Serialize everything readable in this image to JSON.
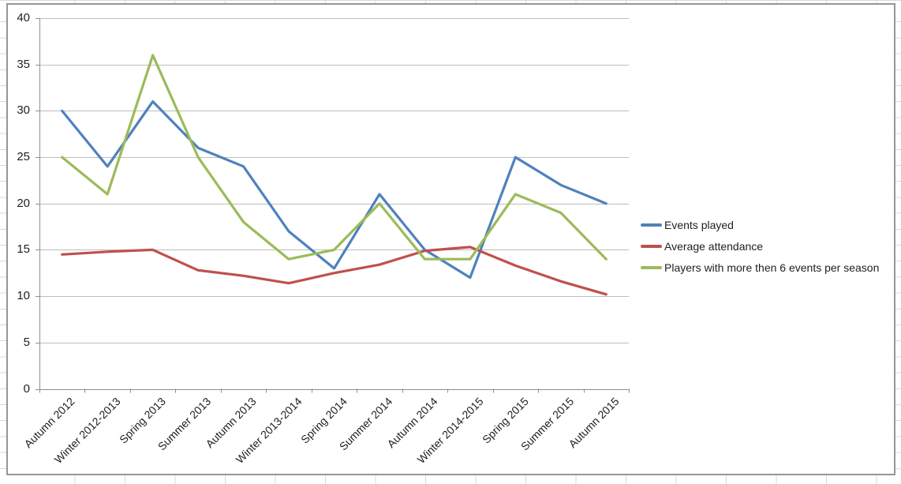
{
  "chart_data": {
    "type": "line",
    "title": "",
    "xlabel": "",
    "ylabel": "",
    "categories": [
      "Autumn 2012",
      "Winter 2012-2013",
      "Spring 2013",
      "Summer 2013",
      "Autumn 2013",
      "Winter 2013-2014",
      "Spring 2014",
      "Summer 2014",
      "Autumn 2014",
      "Winter 2014-2015",
      "Spring 2015",
      "Summer 2015",
      "Autumn 2015"
    ],
    "series": [
      {
        "name": "Events played",
        "color": "#4F81BD",
        "values": [
          30,
          24,
          31,
          26,
          24,
          17,
          13,
          21,
          15,
          12,
          25,
          22,
          20
        ]
      },
      {
        "name": "Average attendance",
        "color": "#C0504D",
        "values": [
          14.5,
          14.8,
          15,
          12.8,
          12.2,
          11.4,
          12.5,
          13.4,
          14.9,
          15.3,
          13.3,
          11.6,
          10.2
        ]
      },
      {
        "name": "Players with more then 6 events per season",
        "color": "#9BBB59",
        "values": [
          25,
          21,
          36,
          25,
          18,
          14,
          15,
          20,
          14,
          14,
          21,
          19,
          14
        ]
      }
    ],
    "ylim": [
      0,
      40
    ],
    "ytick_step": 5,
    "y_tick_labels": [
      "0",
      "5",
      "10",
      "15",
      "20",
      "25",
      "30",
      "35",
      "40"
    ],
    "grid": true,
    "legend_position": "right"
  },
  "colors": {
    "gridline": "#BDBDBD",
    "axis": "#8E8E8E",
    "chart_border": "#969696",
    "text": "#1F1F1F",
    "plot_background": "#FFFFFF",
    "sheet_gridline": "#D8D8D8"
  }
}
